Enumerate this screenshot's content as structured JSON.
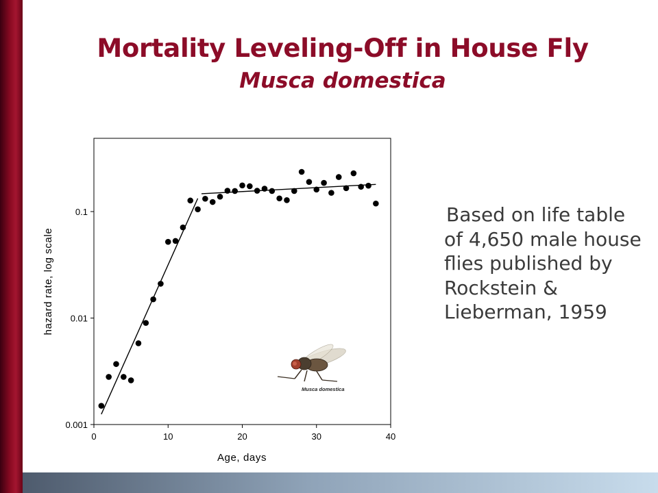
{
  "title": "Mortality Leveling-Off in House Fly",
  "subtitle": "Musca domestica",
  "note": "Based on life table of 4,650 male house flies published by Rockstein & Lieberman, 1959",
  "fly_caption": "Musca domestica",
  "colors": {
    "title": "#8c0c28",
    "accent_bar": "#8a0a22",
    "text": "#3a3a3a"
  },
  "chart_data": {
    "type": "scatter",
    "xlabel": "Age, days",
    "ylabel": "hazard rate, log scale",
    "xlim": [
      0,
      40
    ],
    "ylim": [
      0.001,
      0.5
    ],
    "yscale": "log",
    "xticks": [
      0,
      10,
      20,
      30,
      40
    ],
    "yticks": [
      0.001,
      0.01,
      0.1
    ],
    "ytick_labels": [
      "0.001",
      "0.01",
      "0.1"
    ],
    "grid": false,
    "points": [
      [
        1,
        0.0015
      ],
      [
        2,
        0.0028
      ],
      [
        3,
        0.0037
      ],
      [
        4,
        0.0028
      ],
      [
        5,
        0.0026
      ],
      [
        6,
        0.0058
      ],
      [
        7,
        0.009
      ],
      [
        8,
        0.015
      ],
      [
        9,
        0.021
      ],
      [
        10,
        0.052
      ],
      [
        11,
        0.053
      ],
      [
        12,
        0.071
      ],
      [
        13,
        0.127
      ],
      [
        14,
        0.105
      ],
      [
        15,
        0.132
      ],
      [
        16,
        0.123
      ],
      [
        17,
        0.138
      ],
      [
        18,
        0.157
      ],
      [
        19,
        0.156
      ],
      [
        20,
        0.176
      ],
      [
        21,
        0.173
      ],
      [
        22,
        0.157
      ],
      [
        23,
        0.164
      ],
      [
        24,
        0.156
      ],
      [
        25,
        0.133
      ],
      [
        26,
        0.128
      ],
      [
        27,
        0.156
      ],
      [
        28,
        0.236
      ],
      [
        29,
        0.19
      ],
      [
        30,
        0.161
      ],
      [
        31,
        0.186
      ],
      [
        32,
        0.15
      ],
      [
        33,
        0.211
      ],
      [
        34,
        0.166
      ],
      [
        35,
        0.229
      ],
      [
        36,
        0.171
      ],
      [
        37,
        0.175
      ],
      [
        38,
        0.119
      ]
    ],
    "fit_lines": [
      {
        "x": [
          1,
          14
        ],
        "y": [
          0.00125,
          0.133
        ]
      },
      {
        "x": [
          14.5,
          38
        ],
        "y": [
          0.147,
          0.18
        ]
      }
    ]
  }
}
